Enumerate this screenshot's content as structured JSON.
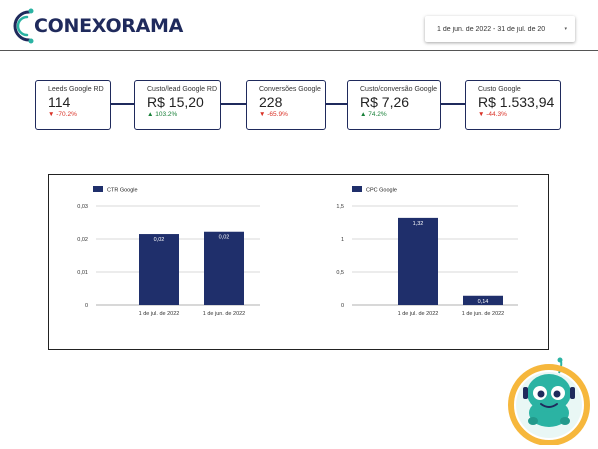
{
  "brand": {
    "logo_text": "CONEXORAMA"
  },
  "date_range": {
    "label": "1 de jun. de 2022 - 31 de jul. de 20",
    "caret": "▾"
  },
  "kpis": [
    {
      "label": "Leeds Google RD",
      "value": "114",
      "delta": "-70.2%",
      "arrow": "▼",
      "trend": "down"
    },
    {
      "label": "Custo/lead Google RD",
      "value": "R$ 15,20",
      "delta": "103.2%",
      "arrow": "▲",
      "trend": "up"
    },
    {
      "label": "Conversões Google",
      "value": "228",
      "delta": "-65.9%",
      "arrow": "▼",
      "trend": "down"
    },
    {
      "label": "Custo/conversão Google",
      "value": "R$ 7,26",
      "delta": "74.2%",
      "arrow": "▲",
      "trend": "up"
    },
    {
      "label": "Custo Google",
      "value": "R$ 1.533,94",
      "delta": "-44.3%",
      "arrow": "▼",
      "trend": "down"
    }
  ],
  "chart_data": [
    {
      "type": "bar",
      "categories": [
        "1 de jul. de 2022",
        "1 de jun. de 2022"
      ],
      "series": [
        {
          "name": "CTR Google",
          "values": [
            0.0215,
            0.0222
          ],
          "labels": [
            "0,02",
            "0,02"
          ]
        }
      ],
      "ylim": [
        0,
        0.03
      ],
      "yticks": [
        0,
        0.01,
        0.02,
        0.03
      ],
      "ytick_labels": [
        "0",
        "0,01",
        "0,02",
        "0,03"
      ],
      "legend": "top-left",
      "grid": true,
      "colors": {
        "bar": "#1f2f6b"
      }
    },
    {
      "type": "bar",
      "categories": [
        "1 de jul. de 2022",
        "1 de jun. de 2022"
      ],
      "series": [
        {
          "name": "CPC Google",
          "values": [
            1.32,
            0.14
          ],
          "labels": [
            "1,32",
            "0,14"
          ]
        }
      ],
      "ylim": [
        0,
        1.5
      ],
      "yticks": [
        0,
        0.5,
        1,
        1.5
      ],
      "ytick_labels": [
        "0",
        "0,5",
        "1",
        "1,5"
      ],
      "legend": "top-left",
      "grid": true,
      "colors": {
        "bar": "#1f2f6b"
      }
    }
  ],
  "colors": {
    "brand_navy": "#1f2a5c",
    "negative": "#d93025",
    "positive": "#188038",
    "mascot_teal": "#2bb3a3"
  }
}
